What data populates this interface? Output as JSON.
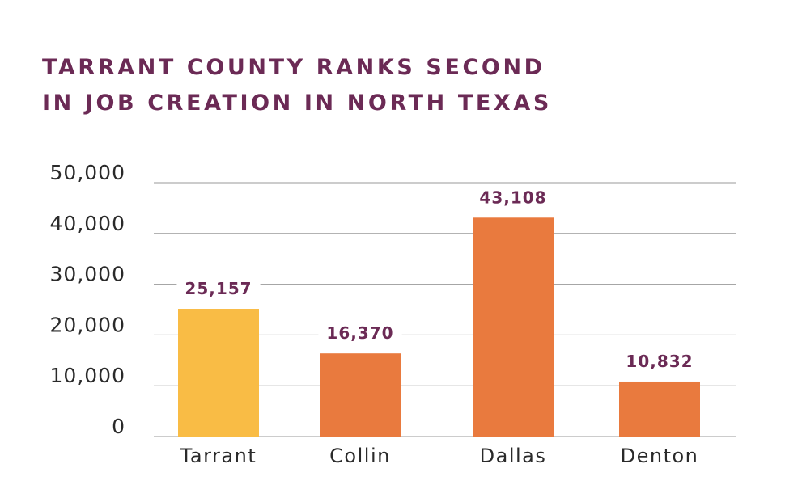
{
  "chart_data": {
    "type": "bar",
    "title_lines": [
      "TARRANT COUNTY RANKS SECOND",
      "IN JOB CREATION IN NORTH TEXAS"
    ],
    "xlabel": "",
    "ylabel": "",
    "categories": [
      "Tarrant",
      "Collin",
      "Dallas",
      "Denton"
    ],
    "values": [
      25157,
      16370,
      43108,
      10832
    ],
    "value_labels": [
      "25,157",
      "16,370",
      "43,108",
      "10,832"
    ],
    "bar_colors": [
      "#f9bc45",
      "#e97a3e",
      "#e97a3e",
      "#e97a3e"
    ],
    "yticks": [
      0,
      10000,
      20000,
      30000,
      40000,
      50000
    ],
    "ytick_labels": [
      "0",
      "10,000",
      "20,000",
      "30,000",
      "40,000",
      "50,000"
    ],
    "ylim": [
      0,
      50000
    ],
    "grid": true,
    "legend": "none",
    "colors": {
      "title": "#6b2a55",
      "value_label": "#6b2a55",
      "gridline": "#9a9a9a",
      "axis_text": "#2a2a2a"
    }
  }
}
